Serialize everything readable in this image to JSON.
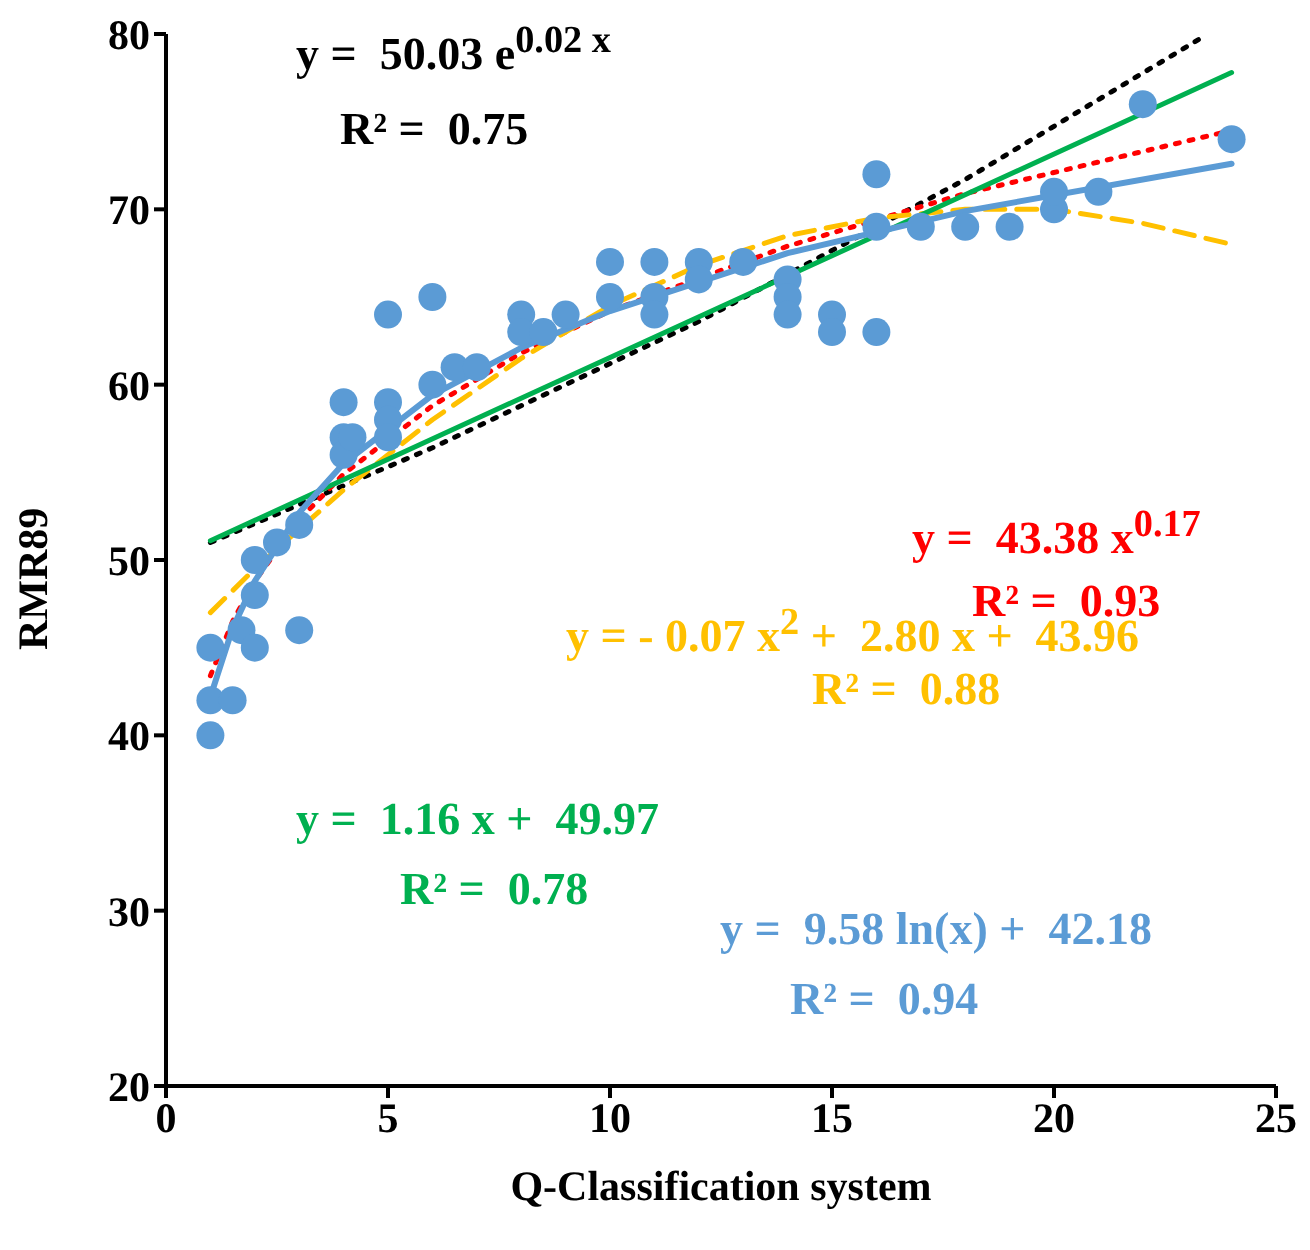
{
  "chart_data": {
    "type": "scatter",
    "xlabel": "Q-Classification system",
    "ylabel": "RMR89",
    "xlim": [
      0,
      25
    ],
    "ylim": [
      20,
      80
    ],
    "xticks": [
      0,
      5,
      10,
      15,
      20,
      25
    ],
    "yticks": [
      20,
      30,
      40,
      50,
      60,
      70,
      80
    ],
    "grid": false,
    "legend": false,
    "series": [
      {
        "color": "#5b9bd5",
        "marker": "circle",
        "x": [
          1,
          1,
          1,
          1.5,
          1.7,
          2,
          2,
          2,
          2.5,
          3,
          3,
          4,
          4,
          4,
          4.2,
          5,
          5,
          5,
          5,
          6,
          6,
          6.5,
          7,
          8,
          8,
          8.5,
          9,
          10,
          10,
          11,
          11,
          11,
          12,
          12,
          13,
          14,
          14,
          14,
          15,
          15,
          16,
          16,
          16,
          17,
          18,
          19,
          20,
          20,
          21,
          22,
          24
        ],
        "values": [
          45,
          42,
          40,
          42,
          46,
          45,
          48,
          50,
          51,
          52,
          46,
          59,
          57,
          56,
          57,
          64,
          59,
          58,
          57,
          65,
          60,
          61,
          61,
          64,
          63,
          63,
          64,
          67,
          65,
          67,
          65,
          64,
          67,
          66,
          67,
          66,
          65,
          64,
          64,
          63,
          72,
          69,
          63,
          69,
          69,
          69,
          70,
          71,
          71,
          76,
          74
        ]
      },
      {
        "type": "line",
        "name": "y =  50.03 e$^{0.02 x}$",
        "color": "#000000",
        "line_style": "dotted",
        "marker": "none",
        "x": [
          1,
          6,
          12,
          18,
          23.4
        ],
        "values": [
          51,
          56.4,
          63.6,
          71.7,
          79.9
        ]
      },
      {
        "type": "line",
        "name": "y =  43.38 x$^{0.17}$",
        "color": "#ff0000",
        "line_style": "dotted",
        "marker": "none",
        "x": [
          1,
          1.5,
          2,
          3,
          4,
          6,
          8,
          10,
          14,
          18,
          24
        ],
        "values": [
          43.4,
          46.5,
          48.8,
          52.3,
          54.9,
          58.8,
          61.8,
          64.2,
          67.9,
          70.9,
          74.5
        ]
      },
      {
        "type": "line",
        "name": "y = - 0.07 x$^{2}$ +  2.80 x +  43.96",
        "color": "#ffc000",
        "line_style": "dashed",
        "marker": "none",
        "x": [
          1,
          2,
          4,
          6,
          8,
          10,
          12,
          14,
          16,
          18,
          20,
          22,
          24
        ],
        "values": [
          47,
          49.5,
          54,
          58,
          61.5,
          64.5,
          66.8,
          68.5,
          69.5,
          70,
          70,
          69.2,
          68
        ]
      },
      {
        "type": "line",
        "name": "y =  1.16 x +  49.97",
        "color": "#00b050",
        "line_style": "solid",
        "marker": "none",
        "x": [
          1,
          24
        ],
        "values": [
          51.1,
          77.8
        ]
      },
      {
        "type": "line",
        "name": "y =  9.58 ln(x) +  42.18",
        "color": "#5b9bd5",
        "line_style": "solid",
        "marker": "none",
        "x": [
          1,
          1.5,
          2,
          3,
          4,
          6,
          8,
          10,
          14,
          18,
          24
        ],
        "values": [
          42.2,
          46.1,
          48.8,
          52.7,
          55.5,
          59.4,
          62.1,
          64.2,
          67.5,
          69.9,
          72.6
        ]
      }
    ],
    "annotations": [
      "R² =  0.75",
      "R² =  0.93",
      "R² =  0.88",
      "R² =  0.78",
      "R² =  0.94"
    ]
  }
}
